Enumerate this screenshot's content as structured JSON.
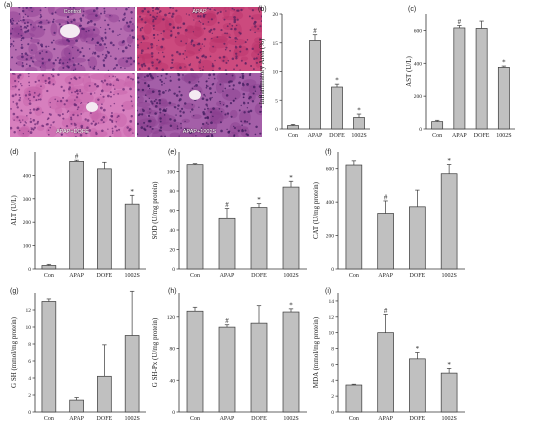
{
  "figure_letter": "(a)",
  "histology": {
    "panels": [
      {
        "id": "control",
        "label": "Control",
        "base": "#b56bb0",
        "accent": "#8e3f92",
        "dot": "#4a1f6b",
        "vessel": true
      },
      {
        "id": "apap",
        "label": "APAP",
        "base": "#cc4a7e",
        "accent": "#b8336a",
        "dot": "#5a2260",
        "vessel": false
      },
      {
        "id": "apap-dofe",
        "label": "APAP+DOFE",
        "base": "#d77fbe",
        "accent": "#c562a8",
        "dot": "#6a2a76",
        "vessel": true
      },
      {
        "id": "apap-1002s",
        "label": "APAP+1002S",
        "base": "#a45fa8",
        "accent": "#8a3f8e",
        "dot": "#3e1a5c",
        "vessel": true
      }
    ]
  },
  "chart_data": [
    {
      "panel": "(b)",
      "type": "bar",
      "categories": [
        "Con",
        "APAP",
        "DOFE",
        "1002S"
      ],
      "values": [
        0.6,
        15.4,
        7.3,
        2.0
      ],
      "errors": [
        0.2,
        1.0,
        0.5,
        0.6
      ],
      "marks": [
        "",
        "#",
        "*",
        "*"
      ],
      "ylabel": "Inflammatory Area (%)",
      "ylim": [
        0,
        20
      ],
      "yticks": [
        0,
        5,
        10,
        15,
        20
      ]
    },
    {
      "panel": "(c)",
      "type": "bar",
      "categories": [
        "Con",
        "APAP",
        "DOFE",
        "1002S"
      ],
      "values": [
        45,
        615,
        612,
        375
      ],
      "errors": [
        8,
        15,
        45,
        8
      ],
      "marks": [
        "",
        "#",
        "",
        "*"
      ],
      "ylabel": "AST (U/L)",
      "ylim": [
        0,
        700
      ],
      "yticks": [
        0,
        200,
        400,
        600
      ]
    },
    {
      "panel": "(d)",
      "type": "bar",
      "categories": [
        "Con",
        "APAP",
        "DOFE",
        "1002S"
      ],
      "values": [
        15,
        460,
        428,
        277
      ],
      "errors": [
        5,
        5,
        28,
        38
      ],
      "marks": [
        "",
        "#",
        "",
        "*"
      ],
      "ylabel": "ALT (U/L)",
      "ylim": [
        0,
        500
      ],
      "yticks": [
        0,
        100,
        200,
        300,
        400
      ]
    },
    {
      "panel": "(e)",
      "type": "bar",
      "categories": [
        "Con",
        "APAP",
        "DOFE",
        "1002S"
      ],
      "values": [
        107,
        52,
        63,
        84
      ],
      "errors": [
        1,
        10,
        4,
        6
      ],
      "marks": [
        "",
        "#",
        "*",
        "*"
      ],
      "ylabel": "SOD (U/mg protein)",
      "ylim": [
        0,
        120
      ],
      "yticks": [
        0,
        20,
        40,
        60,
        80,
        100
      ]
    },
    {
      "panel": "(f)",
      "type": "bar",
      "categories": [
        "Con",
        "APAP",
        "DOFE",
        "1002S"
      ],
      "values": [
        622,
        332,
        372,
        570
      ],
      "errors": [
        25,
        75,
        100,
        55
      ],
      "marks": [
        "",
        "#",
        "",
        "*"
      ],
      "ylabel": "CAT (U/mg protein)",
      "ylim": [
        0,
        700
      ],
      "yticks": [
        0,
        200,
        400,
        600
      ]
    },
    {
      "panel": "(g)",
      "type": "bar",
      "categories": [
        "Con",
        "APAP",
        "DOFE",
        "1002S"
      ],
      "values": [
        13.0,
        1.4,
        4.2,
        9.0
      ],
      "errors": [
        0.3,
        0.3,
        3.7,
        5.2
      ],
      "marks": [
        "",
        "",
        "",
        ""
      ],
      "ylabel": "G SH (mmol/mg protein)",
      "ylim": [
        0,
        14
      ],
      "yticks": [
        0,
        2,
        4,
        6,
        8,
        10,
        12
      ]
    },
    {
      "panel": "(h)",
      "type": "bar",
      "categories": [
        "Con",
        "APAP",
        "DOFE",
        "1002S"
      ],
      "values": [
        127,
        107,
        112,
        126
      ],
      "errors": [
        5,
        3,
        22,
        4
      ],
      "marks": [
        "",
        "#",
        "",
        "*"
      ],
      "ylabel": "G SH-Px (U/mg protein)",
      "ylim": [
        0,
        150
      ],
      "yticks": [
        0,
        40,
        80,
        120
      ]
    },
    {
      "panel": "(i)",
      "type": "bar",
      "categories": [
        "Con",
        "APAP",
        "DOFE",
        "1002S"
      ],
      "values": [
        3.4,
        10.0,
        6.7,
        4.9
      ],
      "errors": [
        0.1,
        2.3,
        0.8,
        0.6
      ],
      "marks": [
        "",
        "#",
        "*",
        "*"
      ],
      "ylabel": "MDA (mmol/mg protein)",
      "ylim": [
        0,
        15
      ],
      "yticks": [
        0,
        2,
        4,
        6,
        8,
        10,
        12,
        14
      ]
    }
  ],
  "colors": {
    "bar_fill": "#c0c0c0",
    "bar_stroke": "#3a3a3a",
    "axis": "#333333",
    "text": "#222222",
    "histo_bg": "#f4eaf2"
  }
}
